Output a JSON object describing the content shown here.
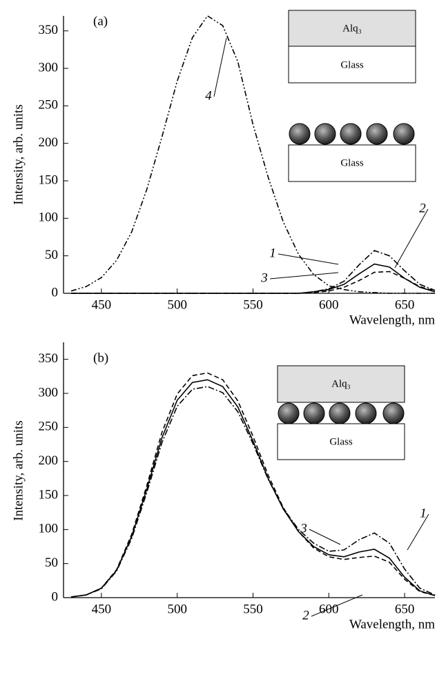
{
  "chart_data": [
    {
      "type": "line",
      "panel_label": "(a)",
      "x_label": "Wavelength, nm",
      "y_label": "Intensity, arb. units",
      "x": [
        430,
        440,
        450,
        460,
        470,
        480,
        490,
        500,
        510,
        520,
        530,
        540,
        550,
        560,
        570,
        580,
        590,
        600,
        610,
        620,
        630,
        640,
        650,
        660,
        670
      ],
      "xlim": [
        425,
        670
      ],
      "xticks": [
        450,
        500,
        550,
        600,
        650
      ],
      "ylim": [
        0,
        370
      ],
      "yticks": [
        0,
        50,
        100,
        150,
        200,
        250,
        300,
        350
      ],
      "series": [
        {
          "name": "1",
          "color": "#000000",
          "dash": "solid",
          "values": [
            0,
            0,
            0,
            0,
            0,
            0,
            0,
            0,
            0,
            0,
            0,
            0,
            0,
            0,
            0,
            0,
            2,
            5,
            12,
            26,
            39,
            35,
            20,
            8,
            2
          ]
        },
        {
          "name": "2",
          "color": "#000000",
          "dash": "dashed",
          "values": [
            0,
            0,
            0,
            0,
            0,
            0,
            0,
            0,
            0,
            0,
            0,
            0,
            0,
            0,
            0,
            0,
            1,
            3,
            8,
            17,
            28,
            29,
            20,
            9,
            3
          ]
        },
        {
          "name": "3",
          "color": "#000000",
          "dash": "dashdot",
          "values": [
            0,
            0,
            0,
            0,
            0,
            0,
            0,
            0,
            0,
            0,
            0,
            0,
            0,
            0,
            0,
            0,
            2,
            6,
            16,
            38,
            57,
            50,
            30,
            12,
            4
          ]
        },
        {
          "name": "4",
          "color": "#000000",
          "dash": "dashdotdot",
          "values": [
            3,
            9,
            21,
            44,
            82,
            139,
            209,
            283,
            341,
            370,
            357,
            309,
            225,
            155,
            95,
            52,
            25,
            10,
            5,
            2,
            1,
            0,
            0,
            0,
            0
          ]
        }
      ],
      "inset_labels": [
        "Alq₃",
        "Glass",
        "Glass"
      ]
    },
    {
      "type": "line",
      "panel_label": "(b)",
      "x_label": "Wavelength, nm",
      "y_label": "Intensity, arb. units",
      "x": [
        430,
        440,
        450,
        460,
        470,
        480,
        490,
        500,
        510,
        520,
        530,
        540,
        550,
        560,
        570,
        580,
        590,
        600,
        610,
        620,
        630,
        640,
        650,
        660,
        670
      ],
      "xlim": [
        425,
        670
      ],
      "xticks": [
        450,
        500,
        550,
        600,
        650
      ],
      "ylim": [
        0,
        375
      ],
      "yticks": [
        0,
        50,
        100,
        150,
        200,
        250,
        300,
        350
      ],
      "series": [
        {
          "name": "1",
          "color": "#000000",
          "dash": "solid",
          "values": [
            1,
            4,
            14,
            40,
            90,
            160,
            235,
            290,
            316,
            320,
            310,
            280,
            230,
            175,
            130,
            97,
            75,
            63,
            60,
            67,
            71,
            58,
            30,
            10,
            3
          ]
        },
        {
          "name": "2",
          "color": "#000000",
          "dash": "dashed",
          "values": [
            1,
            4,
            14,
            41,
            93,
            165,
            243,
            299,
            326,
            330,
            320,
            289,
            237,
            180,
            132,
            97,
            73,
            60,
            56,
            59,
            61,
            52,
            27,
            9,
            3
          ]
        },
        {
          "name": "3",
          "color": "#000000",
          "dash": "dashdot",
          "values": [
            1,
            4,
            13,
            39,
            87,
            155,
            228,
            281,
            306,
            310,
            301,
            273,
            226,
            174,
            131,
            100,
            80,
            68,
            70,
            85,
            95,
            80,
            42,
            14,
            4
          ]
        }
      ],
      "inset_labels": [
        "Alq₃",
        "Glass"
      ]
    }
  ]
}
